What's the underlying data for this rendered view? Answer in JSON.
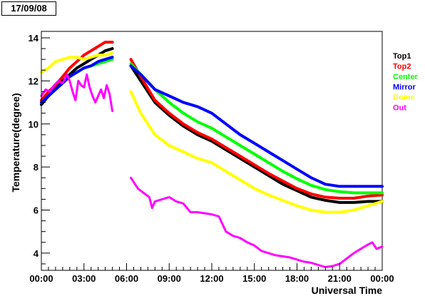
{
  "date_label": "17/09/08",
  "chart_data": {
    "type": "line",
    "xlabel": "Universal Time",
    "ylabel": "Temperature(degree)",
    "x_unit": "hours UT",
    "xlim": [
      0,
      24
    ],
    "ylim": [
      3.2,
      14.3
    ],
    "x_ticks": [
      {
        "value": 0,
        "label": "00:00"
      },
      {
        "value": 3,
        "label": "03:00"
      },
      {
        "value": 6,
        "label": "06:00"
      },
      {
        "value": 9,
        "label": "09:00"
      },
      {
        "value": 12,
        "label": "12:00"
      },
      {
        "value": 15,
        "label": "15:00"
      },
      {
        "value": 18,
        "label": "18:00"
      },
      {
        "value": 21,
        "label": "21:00"
      },
      {
        "value": 24,
        "label": "00:00"
      }
    ],
    "y_ticks": [
      4,
      6,
      8,
      10,
      12,
      14
    ],
    "grid": false,
    "legend_position": "right",
    "series": [
      {
        "name": "Top1",
        "color": "#000000",
        "segments": [
          [
            [
              0.0,
              10.9
            ],
            [
              0.5,
              11.3
            ],
            [
              1.0,
              11.7
            ],
            [
              1.5,
              12.0
            ],
            [
              2.0,
              12.3
            ],
            [
              2.5,
              12.6
            ],
            [
              3.0,
              12.8
            ],
            [
              3.5,
              13.0
            ],
            [
              4.0,
              13.2
            ],
            [
              4.5,
              13.4
            ],
            [
              5.0,
              13.5
            ]
          ],
          [
            [
              6.3,
              12.7
            ],
            [
              7.0,
              12.0
            ],
            [
              8.0,
              11.0
            ],
            [
              9.0,
              10.4
            ],
            [
              10.0,
              9.9
            ],
            [
              11.0,
              9.5
            ],
            [
              12.0,
              9.2
            ],
            [
              13.0,
              8.8
            ],
            [
              14.0,
              8.4
            ],
            [
              15.0,
              8.0
            ],
            [
              16.0,
              7.6
            ],
            [
              17.0,
              7.2
            ],
            [
              18.0,
              6.9
            ],
            [
              19.0,
              6.6
            ],
            [
              20.0,
              6.45
            ],
            [
              21.0,
              6.35
            ],
            [
              22.0,
              6.35
            ],
            [
              23.0,
              6.4
            ],
            [
              24.0,
              6.4
            ]
          ]
        ]
      },
      {
        "name": "Top2",
        "color": "#ff0000",
        "segments": [
          [
            [
              0.0,
              11.1
            ],
            [
              0.5,
              11.5
            ],
            [
              1.0,
              11.8
            ],
            [
              1.5,
              12.2
            ],
            [
              2.0,
              12.6
            ],
            [
              2.5,
              12.9
            ],
            [
              3.0,
              13.2
            ],
            [
              3.5,
              13.4
            ],
            [
              4.0,
              13.6
            ],
            [
              4.5,
              13.8
            ],
            [
              5.0,
              13.8
            ]
          ],
          [
            [
              6.3,
              13.0
            ],
            [
              7.0,
              12.2
            ],
            [
              8.0,
              11.1
            ],
            [
              9.0,
              10.5
            ],
            [
              10.0,
              10.0
            ],
            [
              11.0,
              9.6
            ],
            [
              12.0,
              9.3
            ],
            [
              13.0,
              8.9
            ],
            [
              14.0,
              8.5
            ],
            [
              15.0,
              8.1
            ],
            [
              16.0,
              7.7
            ],
            [
              17.0,
              7.35
            ],
            [
              18.0,
              7.0
            ],
            [
              19.0,
              6.75
            ],
            [
              20.0,
              6.6
            ],
            [
              21.0,
              6.55
            ],
            [
              22.0,
              6.55
            ],
            [
              23.0,
              6.65
            ],
            [
              24.0,
              6.7
            ]
          ]
        ]
      },
      {
        "name": "Center",
        "color": "#00ff00",
        "segments": [
          [
            [
              0.0,
              11.0
            ],
            [
              0.5,
              11.3
            ],
            [
              1.0,
              11.6
            ],
            [
              1.5,
              11.9
            ],
            [
              2.0,
              12.2
            ],
            [
              2.5,
              12.4
            ],
            [
              3.0,
              12.6
            ],
            [
              3.5,
              12.7
            ],
            [
              4.0,
              12.8
            ],
            [
              4.5,
              12.9
            ],
            [
              5.0,
              13.0
            ]
          ],
          [
            [
              6.3,
              12.8
            ],
            [
              7.0,
              12.3
            ],
            [
              8.0,
              11.6
            ],
            [
              9.0,
              11.0
            ],
            [
              10.0,
              10.5
            ],
            [
              11.0,
              10.1
            ],
            [
              12.0,
              9.8
            ],
            [
              13.0,
              9.4
            ],
            [
              14.0,
              9.0
            ],
            [
              15.0,
              8.6
            ],
            [
              16.0,
              8.2
            ],
            [
              17.0,
              7.8
            ],
            [
              18.0,
              7.45
            ],
            [
              19.0,
              7.15
            ],
            [
              20.0,
              6.95
            ],
            [
              21.0,
              6.85
            ],
            [
              22.0,
              6.8
            ],
            [
              23.0,
              6.8
            ],
            [
              24.0,
              6.8
            ]
          ]
        ]
      },
      {
        "name": "Mirror",
        "color": "#0000ff",
        "segments": [
          [
            [
              0.0,
              11.0
            ],
            [
              0.5,
              11.3
            ],
            [
              1.0,
              11.6
            ],
            [
              1.5,
              11.9
            ],
            [
              2.0,
              12.2
            ],
            [
              2.5,
              12.4
            ],
            [
              3.0,
              12.6
            ],
            [
              3.5,
              12.7
            ],
            [
              4.0,
              12.9
            ],
            [
              4.5,
              13.0
            ],
            [
              5.0,
              13.1
            ]
          ],
          [
            [
              6.3,
              12.7
            ],
            [
              7.0,
              12.3
            ],
            [
              8.0,
              11.6
            ],
            [
              9.0,
              11.3
            ],
            [
              10.0,
              11.0
            ],
            [
              11.0,
              10.8
            ],
            [
              12.0,
              10.5
            ],
            [
              13.0,
              10.0
            ],
            [
              14.0,
              9.5
            ],
            [
              15.0,
              9.1
            ],
            [
              16.0,
              8.7
            ],
            [
              17.0,
              8.3
            ],
            [
              18.0,
              7.9
            ],
            [
              19.0,
              7.5
            ],
            [
              20.0,
              7.2
            ],
            [
              21.0,
              7.1
            ],
            [
              22.0,
              7.1
            ],
            [
              23.0,
              7.1
            ],
            [
              24.0,
              7.1
            ]
          ]
        ]
      },
      {
        "name": "Dome",
        "color": "#ffff00",
        "segments": [
          [
            [
              0.0,
              12.4
            ],
            [
              0.5,
              12.6
            ],
            [
              1.0,
              12.9
            ],
            [
              1.5,
              13.0
            ],
            [
              2.0,
              13.1
            ],
            [
              2.5,
              13.1
            ],
            [
              3.0,
              13.0
            ],
            [
              3.5,
              13.1
            ],
            [
              4.0,
              13.2
            ],
            [
              4.5,
              13.2
            ],
            [
              5.0,
              13.3
            ]
          ],
          [
            [
              6.3,
              11.5
            ],
            [
              7.0,
              10.5
            ],
            [
              8.0,
              9.5
            ],
            [
              9.0,
              9.0
            ],
            [
              10.0,
              8.7
            ],
            [
              11.0,
              8.4
            ],
            [
              12.0,
              8.2
            ],
            [
              13.0,
              7.8
            ],
            [
              14.0,
              7.4
            ],
            [
              15.0,
              7.0
            ],
            [
              16.0,
              6.7
            ],
            [
              17.0,
              6.45
            ],
            [
              18.0,
              6.2
            ],
            [
              19.0,
              6.0
            ],
            [
              20.0,
              5.9
            ],
            [
              21.0,
              5.9
            ],
            [
              22.0,
              6.0
            ],
            [
              23.0,
              6.2
            ],
            [
              24.0,
              6.4
            ]
          ]
        ]
      },
      {
        "name": "Out",
        "color": "#ff00ff",
        "segments": [
          [
            [
              0.0,
              11.3
            ],
            [
              0.3,
              11.6
            ],
            [
              0.6,
              11.5
            ],
            [
              0.9,
              11.8
            ],
            [
              1.2,
              12.0
            ],
            [
              1.5,
              11.9
            ],
            [
              1.8,
              12.3
            ],
            [
              2.0,
              12.0
            ],
            [
              2.2,
              11.5
            ],
            [
              2.4,
              11.1
            ],
            [
              2.6,
              12.0
            ],
            [
              2.8,
              11.8
            ],
            [
              3.0,
              11.7
            ],
            [
              3.2,
              12.3
            ],
            [
              3.4,
              11.7
            ],
            [
              3.6,
              11.3
            ],
            [
              3.8,
              11.0
            ],
            [
              4.0,
              11.3
            ],
            [
              4.2,
              11.6
            ],
            [
              4.4,
              11.2
            ],
            [
              4.6,
              11.8
            ],
            [
              4.8,
              11.4
            ],
            [
              5.0,
              10.6
            ]
          ],
          [
            [
              6.3,
              7.5
            ],
            [
              6.8,
              7.0
            ],
            [
              7.2,
              6.8
            ],
            [
              7.6,
              6.6
            ],
            [
              7.8,
              6.1
            ],
            [
              8.0,
              6.4
            ],
            [
              8.5,
              6.5
            ],
            [
              9.0,
              6.6
            ],
            [
              9.5,
              6.4
            ],
            [
              10.0,
              6.3
            ],
            [
              10.5,
              5.9
            ],
            [
              11.0,
              5.9
            ],
            [
              11.5,
              5.85
            ],
            [
              12.0,
              5.8
            ],
            [
              12.5,
              5.7
            ],
            [
              13.0,
              5.0
            ],
            [
              13.5,
              4.8
            ],
            [
              14.0,
              4.7
            ],
            [
              14.5,
              4.5
            ],
            [
              15.0,
              4.35
            ],
            [
              15.5,
              4.1
            ],
            [
              16.0,
              4.0
            ],
            [
              16.5,
              3.9
            ],
            [
              17.0,
              3.85
            ],
            [
              17.5,
              3.8
            ],
            [
              18.0,
              3.7
            ],
            [
              18.5,
              3.6
            ],
            [
              19.0,
              3.55
            ],
            [
              19.5,
              3.45
            ],
            [
              20.0,
              3.35
            ],
            [
              20.5,
              3.4
            ],
            [
              21.0,
              3.5
            ],
            [
              21.5,
              3.75
            ],
            [
              22.0,
              4.0
            ],
            [
              22.5,
              4.2
            ],
            [
              23.0,
              4.4
            ],
            [
              23.3,
              4.5
            ],
            [
              23.6,
              4.2
            ],
            [
              24.0,
              4.3
            ]
          ]
        ]
      }
    ]
  }
}
